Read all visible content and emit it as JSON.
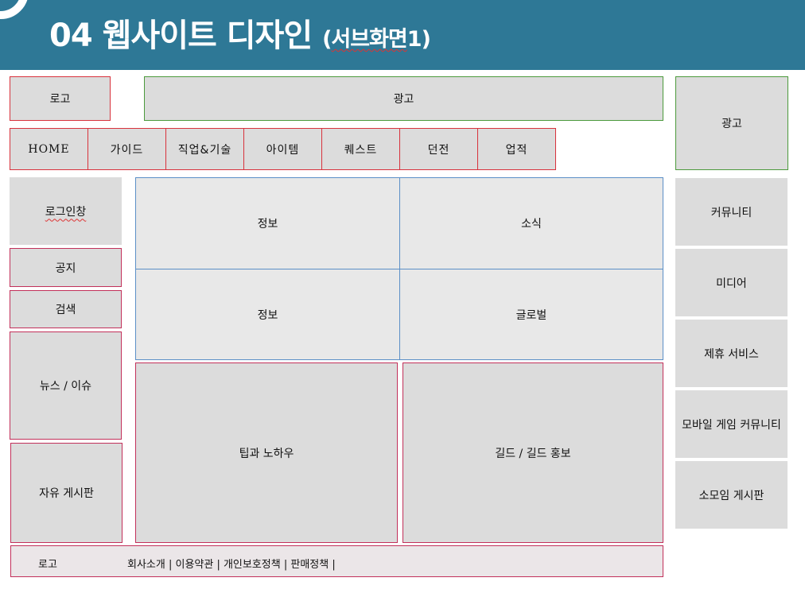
{
  "header": {
    "title_main": "04 웹사이트 디자인",
    "title_sub_open": "(",
    "title_sub_word": "서브화면",
    "title_sub_close": "1)"
  },
  "top": {
    "logo": "로고",
    "ad_banner": "광고",
    "ad_side": "광고"
  },
  "nav": {
    "items": [
      "HOME",
      "가이드",
      "직업&기술",
      "아이템",
      "퀘스트",
      "던전",
      "업적"
    ]
  },
  "left": {
    "login": "로그인창",
    "notice": "공지",
    "search": "검색",
    "news": "뉴스 / 이슈",
    "free_board": "자유 게시판"
  },
  "center": {
    "grid": [
      "정보",
      "소식",
      "정보",
      "글로벌"
    ],
    "tips": "팁과 노하우",
    "guild": "길드 / 길드 홍보"
  },
  "right": {
    "items": [
      "커뮤니티",
      "미디어",
      "제휴 서비스",
      "모바일 게임 커뮤니티",
      "소모임 게시판"
    ]
  },
  "footer": {
    "logo": "로고",
    "links": "회사소개 | 이용약관 | 개인보호정책 | 판매정책 |"
  }
}
